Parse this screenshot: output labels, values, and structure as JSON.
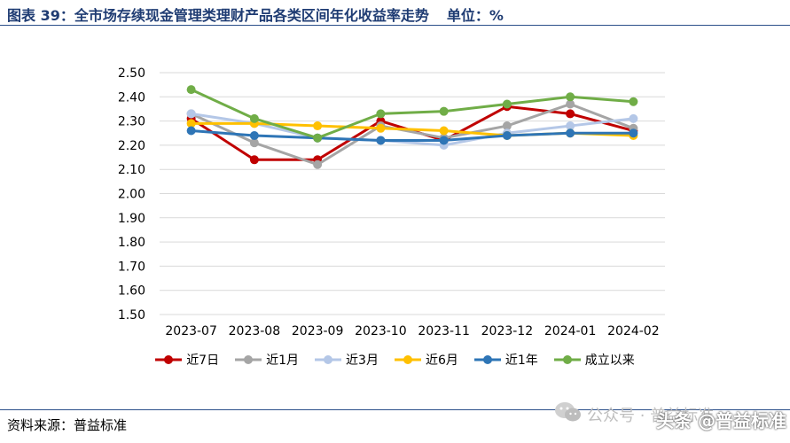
{
  "header": {
    "title": "图表 39：全市场存续现金管理类理财产品各类区间年化收益率走势",
    "unit": "单位：%"
  },
  "footer": {
    "source": "资料来源：普益标准",
    "watermark": "公众号 · 普益标准",
    "attribution": "头条 @普益标准"
  },
  "chart_data": {
    "type": "line",
    "x": [
      "2023-07",
      "2023-08",
      "2023-09",
      "2023-10",
      "2023-11",
      "2023-12",
      "2024-01",
      "2024-02"
    ],
    "yticks": [
      "2.50",
      "2.40",
      "2.30",
      "2.20",
      "2.10",
      "2.00",
      "1.90",
      "1.80",
      "1.70",
      "1.60",
      "1.50"
    ],
    "ylim": [
      1.5,
      2.5
    ],
    "grid": true,
    "legend_position": "bottom",
    "series": [
      {
        "name": "近7日",
        "color": "#c00000",
        "values": [
          2.31,
          2.14,
          2.14,
          2.3,
          2.22,
          2.36,
          2.33,
          2.26
        ]
      },
      {
        "name": "近1月",
        "color": "#a5a5a5",
        "values": [
          2.33,
          2.21,
          2.12,
          2.28,
          2.23,
          2.28,
          2.37,
          2.27
        ]
      },
      {
        "name": "近3月",
        "color": "#b4c7e7",
        "values": [
          2.33,
          2.29,
          2.23,
          2.22,
          2.2,
          2.25,
          2.28,
          2.31
        ]
      },
      {
        "name": "近6月",
        "color": "#ffc000",
        "values": [
          2.29,
          2.29,
          2.28,
          2.27,
          2.26,
          2.24,
          2.25,
          2.24
        ]
      },
      {
        "name": "近1年",
        "color": "#2e75b6",
        "values": [
          2.26,
          2.24,
          2.23,
          2.22,
          2.22,
          2.24,
          2.25,
          2.25
        ]
      },
      {
        "name": "成立以来",
        "color": "#70ad47",
        "values": [
          2.43,
          2.31,
          2.23,
          2.33,
          2.34,
          2.37,
          2.4,
          2.38
        ]
      }
    ]
  }
}
